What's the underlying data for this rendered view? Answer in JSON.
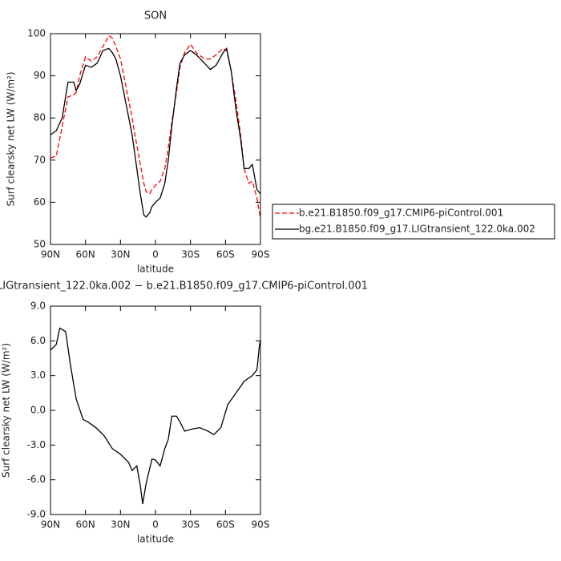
{
  "chart_data": [
    {
      "type": "line",
      "title": "SON",
      "xlabel": "latitude",
      "ylabel": "Surf clearsky net LW (W/m²)",
      "xlim": [
        90,
        -90
      ],
      "xticks": [
        {
          "value": 90,
          "label": "90N"
        },
        {
          "value": 60,
          "label": "60N"
        },
        {
          "value": 30,
          "label": "30N"
        },
        {
          "value": 0,
          "label": "0"
        },
        {
          "value": -30,
          "label": "30S"
        },
        {
          "value": -60,
          "label": "60S"
        },
        {
          "value": -90,
          "label": "90S"
        }
      ],
      "ylim": [
        50,
        100
      ],
      "yticks": [
        50,
        60,
        70,
        80,
        90,
        100
      ],
      "legend": "right",
      "x": [
        90,
        85,
        80,
        75,
        70,
        68,
        65,
        60,
        55,
        50,
        45,
        40,
        37,
        34,
        30,
        25,
        20,
        17,
        13,
        10,
        8,
        5,
        3,
        0,
        -4,
        -8,
        -11,
        -14,
        -18,
        -21,
        -25,
        -30,
        -35,
        -42,
        -47,
        -52,
        -58,
        -61,
        -65,
        -69,
        -73,
        -76,
        -80,
        -83,
        -87,
        -90
      ],
      "series": [
        {
          "name": "b.e21.B1850.f09_g17.CMIP6-piControl.001",
          "color": "#ff0000",
          "dash": true,
          "values": [
            70.5,
            71,
            78,
            85,
            85.5,
            86,
            90,
            94.5,
            93.5,
            94.5,
            97,
            99.5,
            99,
            97,
            94,
            87,
            80,
            75,
            69,
            64.5,
            62.5,
            62,
            63,
            64,
            65,
            68,
            73,
            79,
            86,
            92,
            95.5,
            97.5,
            95.5,
            94,
            94,
            95,
            96.5,
            96,
            91,
            84,
            76,
            68,
            64.5,
            65,
            61,
            56
          ]
        },
        {
          "name": "bg.e21.B1850.f09_g17.LIGtransient_122.0ka.002",
          "color": "#000000",
          "dash": false,
          "values": [
            76,
            77,
            80,
            88.5,
            88.5,
            86.5,
            88,
            92.5,
            92,
            93,
            96,
            96.5,
            95.5,
            94,
            90,
            83,
            76,
            70,
            62,
            57,
            56.5,
            57.5,
            59,
            60,
            61,
            64.5,
            70,
            78,
            87,
            93,
            95,
            96,
            95,
            93,
            91.5,
            92.5,
            95.5,
            96.5,
            91,
            82,
            75,
            68,
            68,
            69,
            63,
            62
          ]
        }
      ]
    },
    {
      "type": "line",
      "title": "LIGtransient_122.0ka.002 − b.e21.B1850.f09_g17.CMIP6-piControl.001",
      "xlabel": "latitude",
      "ylabel": "Surf clearsky net LW (W/m²)",
      "xlim": [
        90,
        -90
      ],
      "xticks": [
        {
          "value": 90,
          "label": "90N"
        },
        {
          "value": 60,
          "label": "60N"
        },
        {
          "value": 30,
          "label": "30N"
        },
        {
          "value": 0,
          "label": "0"
        },
        {
          "value": -30,
          "label": "30S"
        },
        {
          "value": -60,
          "label": "60S"
        },
        {
          "value": -90,
          "label": "90S"
        }
      ],
      "ylim": [
        -9,
        9
      ],
      "yticks": [
        {
          "value": -9,
          "label": "-9.0"
        },
        {
          "value": -6,
          "label": "-6.0"
        },
        {
          "value": -3,
          "label": "-3.0"
        },
        {
          "value": 0,
          "label": "0.0"
        },
        {
          "value": 3,
          "label": "3.0"
        },
        {
          "value": 6,
          "label": "6.0"
        },
        {
          "value": 9,
          "label": "9.0"
        }
      ],
      "x": [
        90,
        85,
        82,
        77,
        73,
        68,
        62,
        58,
        51,
        44,
        37,
        30,
        23,
        20,
        16,
        13,
        11,
        8,
        3,
        0,
        -4,
        -8,
        -11,
        -14,
        -18,
        -21,
        -25,
        -32,
        -38,
        -45,
        -50,
        -56,
        -62,
        -69,
        -76,
        -83,
        -87,
        -89,
        -90
      ],
      "color": "#000000",
      "values": [
        5.2,
        5.7,
        7.1,
        6.8,
        4.0,
        1.0,
        -0.8,
        -1.0,
        -1.5,
        -2.2,
        -3.3,
        -3.8,
        -4.5,
        -5.2,
        -4.8,
        -6.5,
        -8.1,
        -6.3,
        -4.2,
        -4.3,
        -4.8,
        -3.3,
        -2.5,
        -0.5,
        -0.5,
        -1.0,
        -1.8,
        -1.6,
        -1.5,
        -1.8,
        -2.1,
        -1.5,
        0.5,
        1.5,
        2.5,
        3.0,
        3.5,
        5.5,
        6.1
      ]
    }
  ]
}
